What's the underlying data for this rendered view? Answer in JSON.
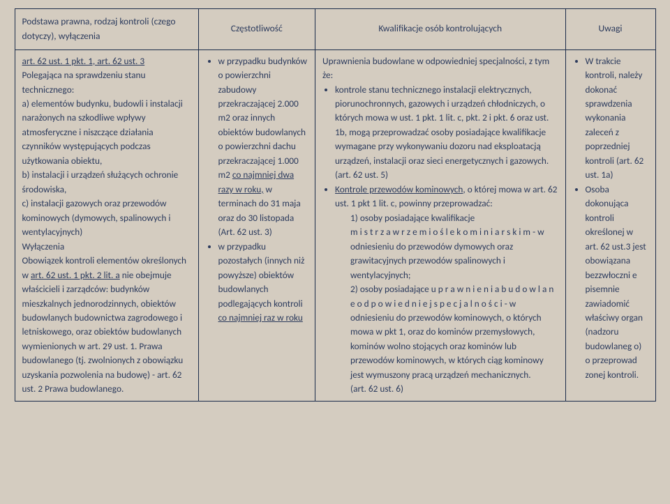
{
  "header": {
    "c1": "Podstawa prawna, rodzaj kontroli (czego dotyczy), wyłączenia",
    "c2": "Częstotliwość",
    "c3": "Kwalifikacje osób kontrolujących",
    "c4": "Uwagi"
  },
  "body": {
    "c1": {
      "l1a": "art. 62 ust. 1 pkt. 1, art. 62 ust. 3",
      "l1b": "Polegająca na sprawdzeniu stanu technicznego:",
      "l2": "a)  elementów budynku, budowli i instalacji narażonych na szkodliwe wpływy atmosferyczne i niszczące działania czynników występujących podczas użytkowania obiektu,",
      "l3": "b)  instalacji i urządzeń służących ochronie środowiska,",
      "l4": "c)  instalacji gazowych oraz przewodów kominowych (dymowych, spalinowych i wentylacyjnych)",
      "l5": "Wyłączenia",
      "l6a": "Obowiązek kontroli elementów określonych w ",
      "l6u": "art. 62 ust. 1 pkt. 2 lit. a",
      "l6b": " nie obejmuje właścicieli i zarządców:  budynków mieszkalnych jednorodzinnych, obiektów budowlanych budownictwa zagrodowego i letniskowego, oraz obiektów budowlanych wymienionych w art. 29 ust. 1. Prawa budowlanego (tj. zwolnionych z obowiązku uzyskania pozwolenia na budowę) -  art. 62 ust. 2 Prawa budowlanego."
    },
    "c2": {
      "li1a": "w przypadku budynków o powierzchni zabudowy przekraczającej 2.000 m2 oraz innych obiektów budowlanych o powierzchni dachu przekraczającej 1.000 m2 ",
      "li1u1": "co najmniej dwa razy w roku,",
      "li1b": " w terminach do 31 maja oraz do 30 listopada (Art. 62 ust. 3)",
      "li2a": "w przypadku pozostałych (innych niż powyższe) obiektów budowlanych podlegających kontroli ",
      "li2u": "co najmniej raz w roku"
    },
    "c3": {
      "p1": "Uprawnienia budowlane w odpowiedniej specjalności, z tym że:",
      "li1": "kontrole stanu technicznego instalacji elektrycznych, piorunochronnych, gazowych i urządzeń chłodniczych, o których mowa w ust. 1 pkt. 1 lit. c, pkt. 2 i pkt. 6 oraz ust. 1b, mogą przeprowadzać osoby posiadające kwalifikacje wymagane przy wykonywaniu dozoru nad eksploatacją urządzeń, instalacji oraz sieci energetycznych i gazowych. (art. 62 ust. 5)",
      "li2u": "Kontrole przewodów kominowych",
      "li2a": ", o której mowa w art. 62  ust. 1 pkt 1 lit. c, powinny przeprowadzać:",
      "s1a": "1)  osoby posiadające kwalifikacje ",
      "s1m": "m i s t r z a    w   r z e m i o ś l e   k o m i n i a r s k i m",
      "s1b": "   -   w odniesieniu do przewodów dymowych oraz grawitacyjnych przewodów spalinowych i wentylacyjnych;",
      "s2a": "2)  osoby posiadające ",
      "s2u": "u p r a w n i e n i a   b u d o w l a n e   o d p o w i e d n i e j   s p e c j a l n o ś c i",
      "s2b": "   -  w odniesieniu do przewodów kominowych, o których mowa w pkt 1, oraz do kominów przemysłowych, kominów wolno stojących oraz kominów lub przewodów kominowych, w których ciąg kominowy jest wymuszony pracą urządzeń mechanicznych.",
      "s3": "(art. 62 ust. 6)"
    },
    "c4": {
      "li1": "W trakcie kontroli, należy dokonać sprawdzenia wykonania zaleceń z poprzedniej kontroli (art. 62 ust. 1a)",
      "li2": "Osoba dokonująca kontroli określonej w art. 62 ust.3 jest obowiązana bezzwłoczni e pisemnie zawiadomić właściwy organ (nadzoru budowlaneg o) o przeprowad zonej kontroli."
    }
  }
}
